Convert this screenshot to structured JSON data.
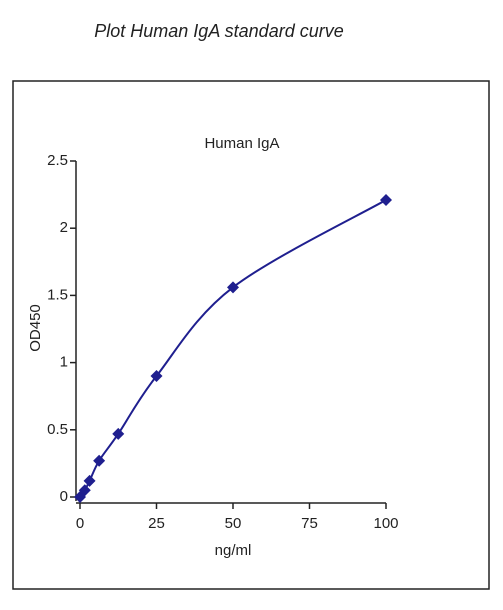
{
  "header": {
    "title": "Plot Human IgA standard curve"
  },
  "chart_data": {
    "type": "line",
    "title": "Human IgA",
    "x_label": "ng/ml",
    "y_label": "OD450",
    "x": [
      0,
      1.5625,
      3.125,
      6.25,
      12.5,
      25,
      50,
      100
    ],
    "series": [
      {
        "name": "Human IgA",
        "color": "#1f1f8f",
        "values": [
          0,
          0.05,
          0.12,
          0.27,
          0.47,
          0.9,
          1.56,
          2.21
        ]
      }
    ],
    "xlim": [
      0,
      100
    ],
    "xticks": [
      0,
      25,
      50,
      75,
      100
    ],
    "ylim": [
      0,
      2.5
    ],
    "yticks": [
      0,
      0.5,
      1,
      1.5,
      2,
      2.5
    ],
    "marker": "diamond"
  }
}
